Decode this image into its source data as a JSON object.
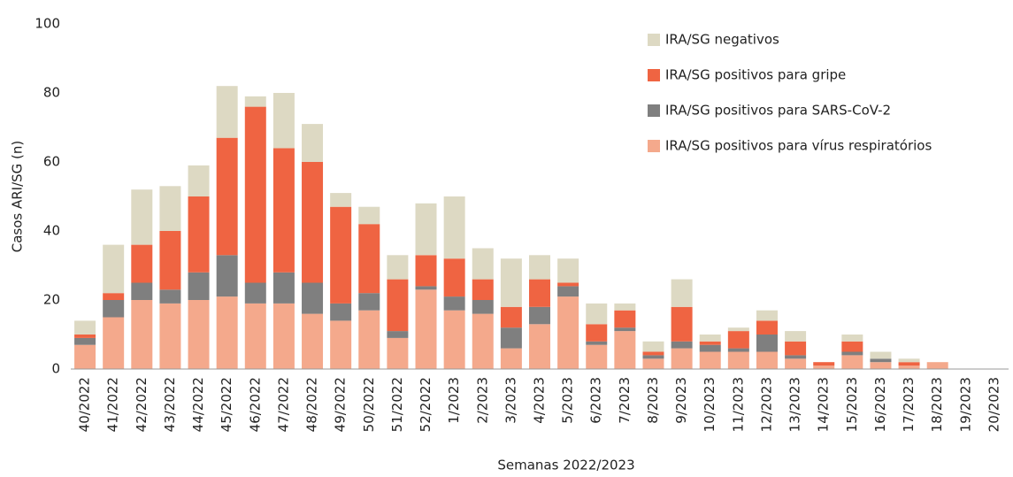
{
  "chart_data": {
    "type": "stacked-bar",
    "x_label": "Semanas 2022/2023",
    "y_label": "Casos ARI/SG (n)",
    "categories": [
      "40/2022",
      "41/2022",
      "42/2022",
      "43/2022",
      "44/2022",
      "45/2022",
      "46/2022",
      "47/2022",
      "48/2022",
      "49/2022",
      "50/2022",
      "51/2022",
      "52/2022",
      "1/2023",
      "2/2023",
      "3/2023",
      "4/2023",
      "5/2023",
      "6/2023",
      "7/2023",
      "8/2023",
      "9/2023",
      "10/2023",
      "11/2023",
      "12/2023",
      "13/2023",
      "14/2023",
      "15/2023",
      "16/2023",
      "17/2023",
      "18/2023",
      "19/2023",
      "20/2023"
    ],
    "series": [
      {
        "name": "IRA/SG positivos para vírus respiratórios",
        "color": "#f4a98c",
        "values": [
          7,
          15,
          20,
          19,
          20,
          21,
          19,
          19,
          16,
          14,
          17,
          9,
          23,
          17,
          16,
          6,
          13,
          21,
          7,
          11,
          3,
          6,
          5,
          5,
          5,
          3,
          1,
          4,
          2,
          1,
          2,
          0,
          0
        ]
      },
      {
        "name": "IRA/SG positivos para SARS-CoV-2",
        "color": "#7f7f7f",
        "values": [
          2,
          5,
          5,
          4,
          8,
          12,
          6,
          9,
          9,
          5,
          5,
          2,
          1,
          4,
          4,
          6,
          5,
          3,
          1,
          1,
          1,
          2,
          2,
          1,
          5,
          1,
          0,
          1,
          1,
          0,
          0,
          0,
          0
        ]
      },
      {
        "name": "IRA/SG positivos para gripe",
        "color": "#ef6442",
        "values": [
          1,
          2,
          11,
          17,
          22,
          34,
          51,
          36,
          35,
          28,
          20,
          15,
          9,
          11,
          6,
          6,
          8,
          1,
          5,
          5,
          1,
          10,
          1,
          5,
          4,
          4,
          1,
          3,
          0,
          1,
          0,
          0,
          0
        ]
      },
      {
        "name": "IRA/SG negativos",
        "color": "#ddd9c3",
        "values": [
          4,
          14,
          16,
          13,
          9,
          15,
          3,
          16,
          11,
          4,
          5,
          7,
          15,
          18,
          9,
          14,
          7,
          7,
          6,
          2,
          3,
          8,
          2,
          1,
          3,
          3,
          0,
          2,
          2,
          1,
          0,
          0,
          0
        ]
      }
    ],
    "ylim": [
      0,
      100
    ],
    "yticks": [
      0,
      20,
      40,
      60,
      80,
      100
    ],
    "grid": false,
    "legend": "top-right"
  }
}
